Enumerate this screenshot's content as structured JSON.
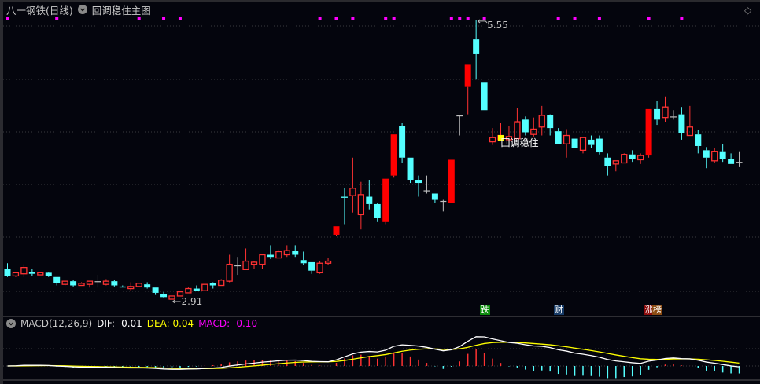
{
  "header": {
    "title": "八一钢铁(日线)",
    "indicator_icon": "chevron-down-circle-icon",
    "indicator_name": "回调稳住主图",
    "corner_icon": "diamond-icon"
  },
  "price_chart": {
    "high_label": "5.55",
    "low_label": "2.91",
    "signal_label": "回调稳住",
    "signal_index": 60,
    "colors": {
      "up": "#ff3232",
      "up_solid": "#ff0000",
      "down": "#54ffff",
      "flat": "#c0c0c0",
      "signal": "#ffff00",
      "dots": "#ff00ff"
    },
    "solid_up": [
      40,
      46,
      47,
      54,
      56,
      78
    ],
    "dot_indices": [
      0,
      6,
      16,
      19,
      21,
      38,
      40,
      42,
      46,
      47,
      54,
      55,
      56,
      58,
      67,
      69,
      72,
      78,
      82
    ],
    "candles": [
      [
        3.2,
        3.25,
        3.12,
        3.13
      ],
      [
        3.13,
        3.17,
        3.12,
        3.16
      ],
      [
        3.15,
        3.24,
        3.12,
        3.21
      ],
      [
        3.17,
        3.2,
        3.13,
        3.15
      ],
      [
        3.14,
        3.17,
        3.14,
        3.16
      ],
      [
        3.16,
        3.17,
        3.12,
        3.13
      ],
      [
        3.12,
        3.12,
        3.04,
        3.06
      ],
      [
        3.05,
        3.08,
        3.04,
        3.08
      ],
      [
        3.08,
        3.09,
        3.03,
        3.04
      ],
      [
        3.04,
        3.07,
        3.04,
        3.06
      ],
      [
        3.05,
        3.08,
        3.02,
        3.08
      ],
      [
        3.08,
        3.14,
        3.02,
        3.08
      ],
      [
        3.05,
        3.1,
        3.04,
        3.08
      ],
      [
        3.08,
        3.09,
        3.03,
        3.04
      ],
      [
        3.03,
        3.04,
        3.02,
        3.02
      ],
      [
        3.01,
        3.07,
        2.99,
        3.03
      ],
      [
        3.03,
        3.06,
        3.03,
        3.06
      ],
      [
        3.05,
        3.07,
        3.01,
        3.02
      ],
      [
        3.02,
        3.02,
        2.95,
        2.97
      ],
      [
        2.96,
        2.98,
        2.92,
        2.93
      ],
      [
        2.91,
        2.95,
        2.91,
        2.94
      ],
      [
        2.94,
        2.99,
        2.94,
        2.98
      ],
      [
        2.97,
        3.02,
        2.97,
        3.01
      ],
      [
        3.01,
        3.04,
        2.99,
        2.99
      ],
      [
        2.99,
        3.05,
        2.99,
        3.05
      ],
      [
        3.06,
        3.07,
        3.01,
        3.04
      ],
      [
        3.04,
        3.1,
        3.04,
        3.09
      ],
      [
        3.08,
        3.33,
        3.07,
        3.24
      ],
      [
        3.23,
        3.31,
        3.14,
        3.23
      ],
      [
        3.19,
        3.39,
        3.19,
        3.27
      ],
      [
        3.24,
        3.27,
        3.2,
        3.26
      ],
      [
        3.24,
        3.33,
        3.2,
        3.33
      ],
      [
        3.33,
        3.42,
        3.29,
        3.31
      ],
      [
        3.3,
        3.38,
        3.3,
        3.36
      ],
      [
        3.33,
        3.42,
        3.31,
        3.37
      ],
      [
        3.37,
        3.42,
        3.31,
        3.33
      ],
      [
        3.28,
        3.36,
        3.23,
        3.25
      ],
      [
        3.26,
        3.26,
        3.15,
        3.18
      ],
      [
        3.16,
        3.27,
        3.15,
        3.25
      ],
      [
        3.25,
        3.3,
        3.23,
        3.27
      ],
      [
        3.52,
        3.6,
        3.51,
        3.6
      ],
      [
        3.88,
        3.96,
        3.62,
        3.87
      ],
      [
        3.89,
        4.25,
        3.73,
        3.96
      ],
      [
        3.71,
        4.02,
        3.57,
        3.9
      ],
      [
        3.88,
        4.04,
        3.76,
        3.81
      ],
      [
        3.81,
        3.82,
        3.64,
        3.68
      ],
      [
        3.64,
        4.05,
        3.62,
        4.05
      ],
      [
        4.08,
        4.47,
        4.06,
        4.47
      ],
      [
        4.55,
        4.58,
        4.2,
        4.25
      ],
      [
        4.25,
        4.25,
        4.01,
        4.04
      ],
      [
        4.04,
        4.08,
        3.88,
        4.01
      ],
      [
        3.94,
        4.08,
        3.91,
        3.94
      ],
      [
        3.91,
        3.91,
        3.82,
        3.85
      ],
      [
        3.84,
        3.85,
        3.74,
        3.84
      ],
      [
        3.82,
        4.23,
        3.82,
        4.23
      ],
      [
        4.65,
        4.65,
        4.46,
        4.65
      ],
      [
        4.92,
        5.13,
        4.66,
        5.13
      ],
      [
        5.37,
        5.55,
        4.99,
        5.23
      ],
      [
        4.96,
        4.96,
        4.7,
        4.7
      ],
      [
        4.4,
        4.53,
        4.37,
        4.44
      ],
      [
        4.42,
        4.58,
        4.42,
        4.46
      ],
      [
        4.42,
        4.55,
        4.4,
        4.45
      ],
      [
        4.43,
        4.72,
        4.43,
        4.59
      ],
      [
        4.61,
        4.64,
        4.46,
        4.49
      ],
      [
        4.47,
        4.63,
        4.45,
        4.52
      ],
      [
        4.54,
        4.74,
        4.46,
        4.65
      ],
      [
        4.65,
        4.66,
        4.46,
        4.53
      ],
      [
        4.5,
        4.53,
        4.38,
        4.38
      ],
      [
        4.38,
        4.52,
        4.25,
        4.46
      ],
      [
        4.43,
        4.43,
        4.34,
        4.34
      ],
      [
        4.32,
        4.44,
        4.29,
        4.44
      ],
      [
        4.42,
        4.46,
        4.34,
        4.37
      ],
      [
        4.43,
        4.46,
        4.28,
        4.3
      ],
      [
        4.25,
        4.29,
        4.08,
        4.17
      ],
      [
        4.19,
        4.22,
        4.12,
        4.22
      ],
      [
        4.2,
        4.29,
        4.2,
        4.28
      ],
      [
        4.28,
        4.32,
        4.21,
        4.24
      ],
      [
        4.23,
        4.29,
        4.19,
        4.27
      ],
      [
        4.27,
        4.71,
        4.25,
        4.71
      ],
      [
        4.71,
        4.79,
        4.56,
        4.61
      ],
      [
        4.63,
        4.83,
        4.59,
        4.73
      ],
      [
        4.64,
        4.7,
        4.61,
        4.64
      ],
      [
        4.66,
        4.73,
        4.42,
        4.48
      ],
      [
        4.46,
        4.74,
        4.46,
        4.54
      ],
      [
        4.47,
        4.51,
        4.29,
        4.36
      ],
      [
        4.32,
        4.35,
        4.15,
        4.25
      ],
      [
        4.22,
        4.34,
        4.2,
        4.31
      ],
      [
        4.31,
        4.38,
        4.21,
        4.24
      ],
      [
        4.24,
        4.29,
        4.19,
        4.19
      ],
      [
        4.21,
        4.31,
        4.16,
        4.21
      ]
    ]
  },
  "event_tags": [
    {
      "text": "跌",
      "index": 58,
      "bg": "#0a8a0a"
    },
    {
      "text": "财",
      "index": 67,
      "bg": "#153a66"
    },
    {
      "text": "涨",
      "index": 78,
      "bg": "#8a0a0a"
    },
    {
      "text": "榜",
      "index": 79,
      "bg": "#8a4a10"
    }
  ],
  "macd": {
    "title": "MACD(12,26,9)",
    "dif_label": "DIF: -0.01",
    "dea_label": "DEA: 0.04",
    "macd_label": "MACD: -0.10",
    "colors": {
      "dif": "#ffffff",
      "dea": "#ffff00",
      "macd_label": "#ff00ff",
      "pos": "#ff3232",
      "neg": "#54ffff"
    }
  }
}
